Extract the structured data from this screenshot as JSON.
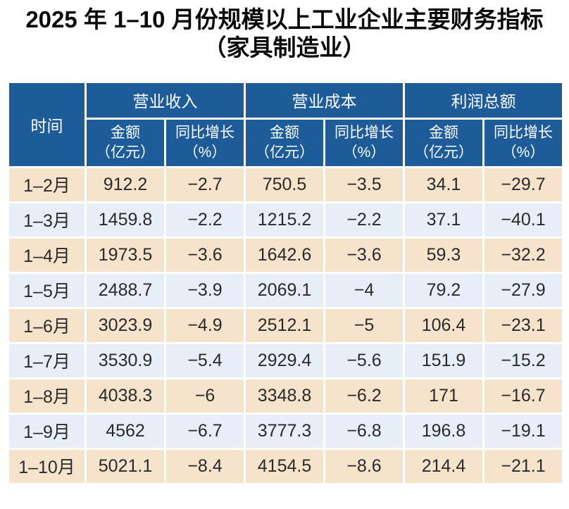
{
  "title": {
    "line1": "2025 年 1–10 月份规模以上工业企业主要财务指标",
    "line2": "（家具制造业）"
  },
  "table": {
    "corner_header": "时间",
    "groups": [
      {
        "label": "营业收入"
      },
      {
        "label": "营业成本"
      },
      {
        "label": "利润总额"
      }
    ],
    "sub_headers": {
      "amount": [
        "金额",
        "（亿元）"
      ],
      "growth": [
        "同比增长",
        "（%）"
      ]
    },
    "rows": [
      {
        "time": "1–2月",
        "values": [
          "912.2",
          "−2.7",
          "750.5",
          "−3.5",
          "34.1",
          "−29.7"
        ]
      },
      {
        "time": "1–3月",
        "values": [
          "1459.8",
          "−2.2",
          "1215.2",
          "−2.2",
          "37.1",
          "−40.1"
        ]
      },
      {
        "time": "1–4月",
        "values": [
          "1973.5",
          "−3.6",
          "1642.6",
          "−3.6",
          "59.3",
          "−32.2"
        ]
      },
      {
        "time": "1–5月",
        "values": [
          "2488.7",
          "−3.9",
          "2069.1",
          "−4",
          "79.2",
          "−27.9"
        ]
      },
      {
        "time": "1–6月",
        "values": [
          "3023.9",
          "−4.9",
          "2512.1",
          "−5",
          "106.4",
          "−23.1"
        ]
      },
      {
        "time": "1–7月",
        "values": [
          "3530.9",
          "−5.4",
          "2929.4",
          "−5.6",
          "151.9",
          "−15.2"
        ]
      },
      {
        "time": "1–8月",
        "values": [
          "4038.3",
          "−6",
          "3348.8",
          "−6.2",
          "171",
          "−16.7"
        ]
      },
      {
        "time": "1–9月",
        "values": [
          "4562",
          "−6.7",
          "3777.3",
          "−6.8",
          "196.8",
          "−19.1"
        ]
      },
      {
        "time": "1–10月",
        "values": [
          "5021.1",
          "−8.4",
          "4154.5",
          "−8.6",
          "214.4",
          "−21.1"
        ]
      }
    ]
  },
  "colors": {
    "header_bg": "#1e5c99",
    "header_text": "#ffffff",
    "row_beige": "#f5e4cb",
    "row_light_blue": "#e7eef8",
    "cell_text": "#2a2a2a",
    "border": "#ffffff"
  },
  "chart_data": {
    "type": "table",
    "title": "2025 年 1–10 月份规模以上工业企业主要财务指标（家具制造业）",
    "column_groups": [
      "营业收入",
      "营业成本",
      "利润总额"
    ],
    "columns": [
      "时间",
      "营业收入 金额（亿元）",
      "营业收入 同比增长（%）",
      "营业成本 金额（亿元）",
      "营业成本 同比增长（%）",
      "利润总额 金额（亿元）",
      "利润总额 同比增长（%）"
    ],
    "rows": [
      [
        "1–2月",
        912.2,
        -2.7,
        750.5,
        -3.5,
        34.1,
        -29.7
      ],
      [
        "1–3月",
        1459.8,
        -2.2,
        1215.2,
        -2.2,
        37.1,
        -40.1
      ],
      [
        "1–4月",
        1973.5,
        -3.6,
        1642.6,
        -3.6,
        59.3,
        -32.2
      ],
      [
        "1–5月",
        2488.7,
        -3.9,
        2069.1,
        -4.0,
        79.2,
        -27.9
      ],
      [
        "1–6月",
        3023.9,
        -4.9,
        2512.1,
        -5.0,
        106.4,
        -23.1
      ],
      [
        "1–7月",
        3530.9,
        -5.4,
        2929.4,
        -5.6,
        151.9,
        -15.2
      ],
      [
        "1–8月",
        4038.3,
        -6.0,
        3348.8,
        -6.2,
        171.0,
        -16.7
      ],
      [
        "1–9月",
        4562.0,
        -6.7,
        3777.3,
        -6.8,
        196.8,
        -19.1
      ],
      [
        "1–10月",
        5021.1,
        -8.4,
        4154.5,
        -8.6,
        214.4,
        -21.1
      ]
    ]
  }
}
